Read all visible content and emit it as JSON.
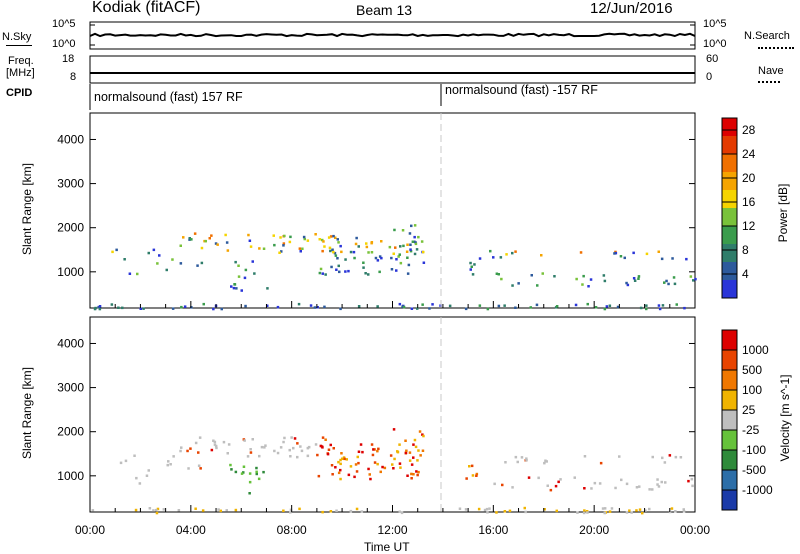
{
  "header": {
    "station": "Kodiak (fitACF)",
    "beam": "Beam 13",
    "date": "12/Jun/2016"
  },
  "summary": {
    "nsky_label": "N.Sky",
    "nsearch_label": "N.Search",
    "freq_label": "Freq.",
    "freq_unit": "[MHz]",
    "nave_label": "Nave",
    "cpid_label": "CPID",
    "noise_ticks": [
      "10^5",
      "10^0"
    ],
    "noise_right_ticks": [
      "10^5",
      "10^0"
    ],
    "freq_ticks": [
      "18",
      "8"
    ],
    "nave_ticks": [
      "60",
      "0"
    ],
    "cpid_segments": [
      {
        "label": "normalsound (fast) 157 RF",
        "start_hour": 0
      },
      {
        "label": "normalsound (fast) -157 RF",
        "start_hour": 14
      }
    ]
  },
  "chart_data": [
    {
      "type": "heatmap",
      "ylabel": "Slant Range [km]",
      "xlabel": "",
      "x_range_hours": [
        0,
        24
      ],
      "ylim": [
        180,
        4600
      ],
      "yticks": [
        1000,
        2000,
        3000,
        4000
      ],
      "colorbar": {
        "label": "Power [dB]",
        "ticks": [
          4,
          8,
          12,
          16,
          20,
          24,
          28
        ],
        "range": [
          0,
          30
        ],
        "colors": [
          "#2a35d8",
          "#2d5a9c",
          "#2f7d6a",
          "#3a9c4c",
          "#79c23a",
          "#f5d400",
          "#f5a400",
          "#f07000",
          "#e43a00",
          "#dd0000"
        ]
      }
    },
    {
      "type": "heatmap",
      "ylabel": "Slant Range [km]",
      "xlabel": "Time UT",
      "x_range_hours": [
        0,
        24
      ],
      "ylim": [
        180,
        4600
      ],
      "yticks": [
        1000,
        2000,
        3000,
        4000
      ],
      "xticks": [
        "00:00",
        "04:00",
        "08:00",
        "12:00",
        "16:00",
        "20:00",
        "00:00"
      ],
      "colorbar": {
        "label": "Velocity [m s^-1]",
        "ticks": [
          "1000",
          "500",
          "100",
          "25",
          "-25",
          "-100",
          "-500",
          "-1000"
        ],
        "colors": [
          "#1a3aa8",
          "#2c6ea8",
          "#2e8a3a",
          "#66c23a",
          "#bebebe",
          "#f0b400",
          "#f07800",
          "#e84400",
          "#dd0000"
        ]
      }
    }
  ]
}
